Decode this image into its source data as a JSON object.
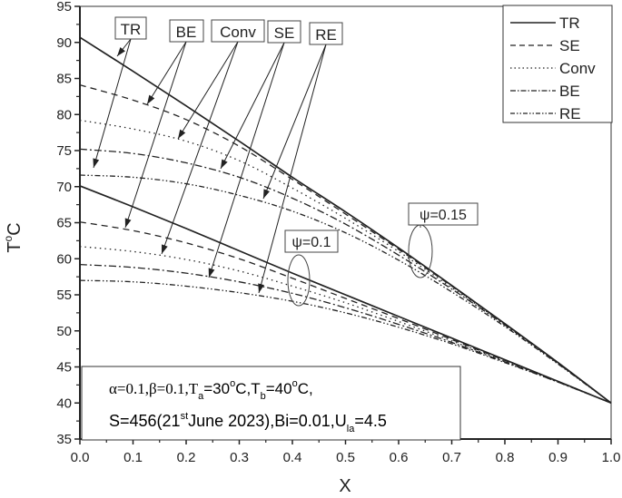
{
  "chart_data": {
    "type": "line",
    "title": "",
    "xlabel": "X",
    "ylabel": "T°C",
    "xlim": [
      0.0,
      1.0
    ],
    "ylim": [
      35,
      95
    ],
    "x_ticks": [
      "0.0",
      "0.1",
      "0.2",
      "0.3",
      "0.4",
      "0.5",
      "0.6",
      "0.7",
      "0.8",
      "0.9",
      "1.0"
    ],
    "y_ticks": [
      "35",
      "40",
      "45",
      "50",
      "55",
      "60",
      "65",
      "70",
      "75",
      "80",
      "85",
      "90",
      "95"
    ],
    "grid": false,
    "legend_position": "top-right",
    "legend": [
      {
        "name": "TR",
        "style": "solid"
      },
      {
        "name": "SE",
        "style": "dashed"
      },
      {
        "name": "Conv",
        "style": "dotted"
      },
      {
        "name": "BE",
        "style": "dash-dot"
      },
      {
        "name": "RE",
        "style": "dash-dot-dot"
      }
    ],
    "x": [
      0.0,
      0.1,
      0.2,
      0.3,
      0.4,
      0.5,
      0.6,
      0.7,
      0.8,
      0.9,
      1.0
    ],
    "series": [
      {
        "name": "TR (ψ=0.15)",
        "style": "solid",
        "values": [
          90.7,
          86.0,
          81.2,
          76.3,
          71.3,
          66.5,
          61.5,
          56.3,
          51.0,
          45.6,
          40.0
        ]
      },
      {
        "name": "SE (ψ=0.15)",
        "style": "dashed",
        "values": [
          84.1,
          82.0,
          79.3,
          75.6,
          71.0,
          66.2,
          61.3,
          56.2,
          51.0,
          45.6,
          40.0
        ]
      },
      {
        "name": "Conv (ψ=0.15)",
        "style": "dotted",
        "values": [
          79.2,
          78.0,
          76.3,
          73.6,
          69.8,
          65.6,
          61.0,
          56.0,
          50.9,
          45.5,
          40.0
        ]
      },
      {
        "name": "BE (ψ=0.15)",
        "style": "dash-dot",
        "values": [
          75.2,
          74.6,
          73.3,
          71.3,
          68.4,
          64.8,
          60.5,
          55.8,
          50.8,
          45.5,
          40.0
        ]
      },
      {
        "name": "RE (ψ=0.15)",
        "style": "dash-dot-dot",
        "values": [
          71.6,
          71.3,
          70.4,
          68.8,
          66.6,
          63.6,
          59.8,
          55.4,
          50.6,
          45.4,
          40.0
        ]
      },
      {
        "name": "TR (ψ=0.1)",
        "style": "solid",
        "values": [
          70.1,
          67.2,
          64.2,
          61.1,
          58.0,
          55.0,
          52.0,
          49.0,
          46.0,
          43.0,
          40.0
        ]
      },
      {
        "name": "SE (ψ=0.1)",
        "style": "dashed",
        "values": [
          65.1,
          63.9,
          62.2,
          60.0,
          57.3,
          54.5,
          51.7,
          48.8,
          45.9,
          43.0,
          40.0
        ]
      },
      {
        "name": "Conv (ψ=0.1)",
        "style": "dotted",
        "values": [
          61.7,
          61.0,
          59.9,
          58.3,
          56.2,
          53.9,
          51.3,
          48.6,
          45.8,
          42.9,
          40.0
        ]
      },
      {
        "name": "BE (ψ=0.1)",
        "style": "dash-dot",
        "values": [
          59.2,
          58.8,
          58.0,
          56.8,
          55.2,
          53.2,
          50.9,
          48.4,
          45.7,
          42.9,
          40.0
        ]
      },
      {
        "name": "RE (ψ=0.1)",
        "style": "dash-dot-dot",
        "values": [
          57.0,
          56.8,
          56.2,
          55.3,
          54.1,
          52.5,
          50.5,
          48.2,
          45.6,
          42.9,
          40.0
        ]
      }
    ],
    "annotations": [
      {
        "text": "ψ=0.15",
        "x": 0.64,
        "y": 60.5
      },
      {
        "text": "ψ=0.1",
        "x": 0.42,
        "y": 56.5
      },
      {
        "text": "TR"
      },
      {
        "text": "BE"
      },
      {
        "text": "Conv"
      },
      {
        "text": "SE"
      },
      {
        "text": "RE"
      }
    ],
    "parameter_box": {
      "line1": "α=0.1,β=0.1,Ta=30°C,Tb=40°C,",
      "line2": "S=456(21st June 2023),Bi=0.01,Ula=4.5"
    }
  },
  "labels": {
    "xlabel": "X",
    "ylabel_main": "T",
    "ylabel_sup": "o",
    "ylabel_unit": "C",
    "callouts": [
      "TR",
      "BE",
      "Conv",
      "SE",
      "RE"
    ],
    "psi1": "ψ=0.15",
    "psi2": "ψ=0.1",
    "legend": [
      "TR",
      "SE",
      "Conv",
      "BE",
      "RE"
    ],
    "param": {
      "alpha": "α=0.1,β=0.1,T",
      "ta_sub": "a",
      "ta_val": "=30",
      "deg1": "o",
      "c1": "C,T",
      "tb_sub": "b",
      "tb_val": "=40",
      "deg2": "o",
      "c2": "C,",
      "s_pre": "S=456(21",
      "st": "st",
      "s_post": "June 2023),Bi=0.01,U",
      "la": "la",
      "u_val": "=4.5"
    }
  }
}
